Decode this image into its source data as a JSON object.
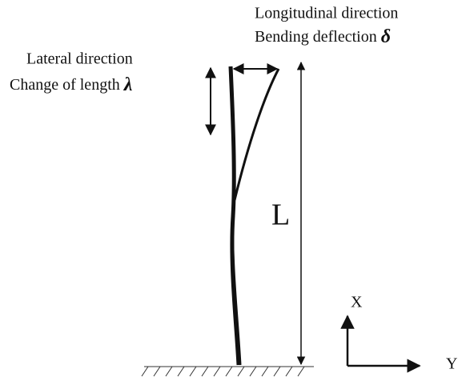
{
  "labels": {
    "longitudinal": "Longitudinal direction",
    "bending": "Bending deflection",
    "delta": "δ",
    "lateral": "Lateral direction",
    "change": "Change of length",
    "lambda": "λ",
    "length": "L",
    "x_axis": "X",
    "y_axis": "Y"
  }
}
